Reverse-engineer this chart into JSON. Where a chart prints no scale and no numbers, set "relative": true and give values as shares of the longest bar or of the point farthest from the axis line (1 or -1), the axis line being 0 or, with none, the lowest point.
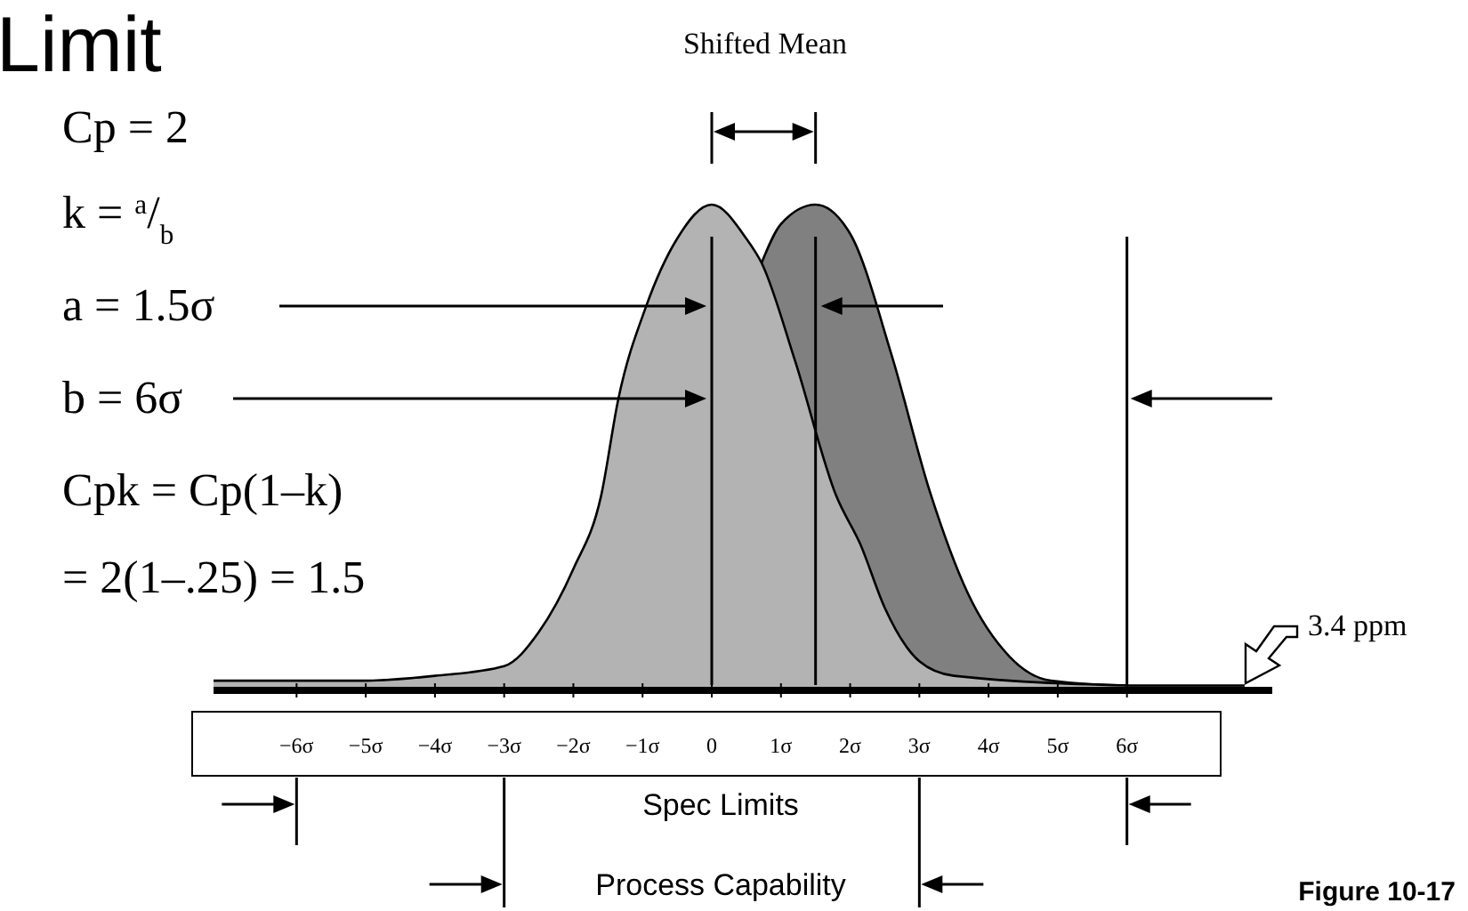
{
  "chart_data": {
    "type": "area",
    "title": "Limit",
    "relative": true,
    "xlim": [
      -7.2,
      8.1
    ],
    "xticks": [
      {
        "value": -6,
        "label": "−6σ"
      },
      {
        "value": -5,
        "label": "−5σ"
      },
      {
        "value": -4,
        "label": "−4σ"
      },
      {
        "value": -3,
        "label": "−3σ"
      },
      {
        "value": -2,
        "label": "−2σ"
      },
      {
        "value": -1,
        "label": "−1σ"
      },
      0,
      {
        "value": 1,
        "label": "1σ"
      },
      {
        "value": 2,
        "label": "2σ"
      },
      {
        "value": 3,
        "label": "3σ"
      },
      {
        "value": 4,
        "label": "4σ"
      },
      {
        "value": 5,
        "label": "5σ"
      },
      {
        "value": 6,
        "label": "6σ"
      }
    ],
    "series": [
      {
        "color": "#808080",
        "x": [
          0.72,
          1,
          1.5,
          2,
          2.6,
          3.15,
          3.7,
          4.3,
          4.9,
          6,
          7.7
        ],
        "values": [
          0.88,
          0.96,
          1,
          0.94,
          0.69,
          0.41,
          0.2,
          0.07,
          0.02,
          0.01,
          0.01
        ]
      },
      {
        "color": "#b3b3b3",
        "x": [
          -7.2,
          -5,
          -4,
          -3,
          -2.5,
          -2,
          -1.6,
          -1.35,
          -0.95,
          -0.5,
          0,
          0.5,
          0.72,
          1.2,
          1.8,
          2.15,
          2.5,
          3,
          3.5,
          6
        ],
        "values": [
          0.02,
          0.02,
          0.03,
          0.05,
          0.12,
          0.25,
          0.4,
          0.6,
          0.79,
          0.93,
          1,
          0.93,
          0.88,
          0.68,
          0.4,
          0.3,
          0.17,
          0.06,
          0.03,
          0.01
        ]
      }
    ],
    "ref_lines": [
      {
        "axis": "x",
        "value": 0
      },
      {
        "axis": "x",
        "value": 1.5
      },
      {
        "axis": "x",
        "value": 6
      }
    ],
    "annotations": [
      "Shifted Mean",
      "Cp = 2",
      "k = $^{a}$/$_{b}$",
      "a = 1.5σ",
      "b = 6σ",
      "Cpk = Cp(1–k)",
      "= 2(1–.25) = 1.5",
      "3.4 ppm",
      "Figure 10-17",
      "Spec Limits",
      "Process Capability"
    ]
  }
}
